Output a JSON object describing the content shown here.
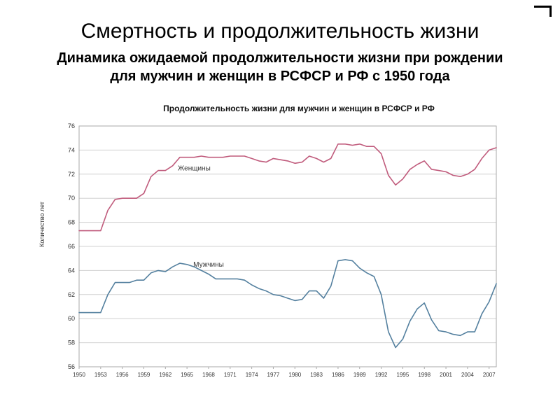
{
  "slide": {
    "title": "Смертность и продолжительность жизни",
    "subtitle": "Динамика ожидаемой продолжительности жизни при рождении для мужчин и женщин в РСФСР и РФ с 1950 года"
  },
  "chart_data": {
    "type": "line",
    "title": "Продолжительность жизни для мужчин и женщин в РСФСР и РФ",
    "ylabel": "Количество лет",
    "ylim": [
      56,
      76
    ],
    "ytick_step": 2,
    "xlim": [
      1950,
      2008
    ],
    "xticks": [
      1950,
      1953,
      1956,
      1959,
      1962,
      1965,
      1968,
      1971,
      1974,
      1977,
      1980,
      1983,
      1986,
      1989,
      1992,
      1995,
      1998,
      2001,
      2004,
      2007
    ],
    "grid": true,
    "legend_position": "inline-labels",
    "x": [
      1950,
      1951,
      1952,
      1953,
      1954,
      1955,
      1956,
      1957,
      1958,
      1959,
      1960,
      1961,
      1962,
      1963,
      1964,
      1965,
      1966,
      1967,
      1968,
      1969,
      1970,
      1971,
      1972,
      1973,
      1974,
      1975,
      1976,
      1977,
      1978,
      1979,
      1980,
      1981,
      1982,
      1983,
      1984,
      1985,
      1986,
      1987,
      1988,
      1989,
      1990,
      1991,
      1992,
      1993,
      1994,
      1995,
      1996,
      1997,
      1998,
      1999,
      2000,
      2001,
      2002,
      2003,
      2004,
      2005,
      2006,
      2007,
      2008
    ],
    "series": [
      {
        "name": "Женщины",
        "color": "#c05b7c",
        "label_x": 1966,
        "label_y": 72.3,
        "values": [
          67.3,
          67.3,
          67.3,
          67.3,
          69.0,
          69.9,
          70.0,
          70.0,
          70.0,
          70.4,
          71.8,
          72.3,
          72.3,
          72.7,
          73.4,
          73.4,
          73.4,
          73.5,
          73.4,
          73.4,
          73.4,
          73.5,
          73.5,
          73.5,
          73.3,
          73.1,
          73.0,
          73.3,
          73.2,
          73.1,
          72.9,
          73.0,
          73.5,
          73.3,
          73.0,
          73.3,
          74.5,
          74.5,
          74.4,
          74.5,
          74.3,
          74.3,
          73.7,
          71.9,
          71.1,
          71.6,
          72.4,
          72.8,
          73.1,
          72.4,
          72.3,
          72.2,
          71.9,
          71.8,
          72.0,
          72.4,
          73.3,
          74.0,
          74.2
        ]
      },
      {
        "name": "Мужчины",
        "color": "#54809f",
        "label_x": 1968,
        "label_y": 64.3,
        "values": [
          60.5,
          60.5,
          60.5,
          60.5,
          62.0,
          63.0,
          63.0,
          63.0,
          63.2,
          63.2,
          63.8,
          64.0,
          63.9,
          64.3,
          64.6,
          64.5,
          64.3,
          64.0,
          63.7,
          63.3,
          63.3,
          63.3,
          63.3,
          63.2,
          62.8,
          62.5,
          62.3,
          62.0,
          61.9,
          61.7,
          61.5,
          61.6,
          62.3,
          62.3,
          61.7,
          62.7,
          64.8,
          64.9,
          64.8,
          64.2,
          63.8,
          63.5,
          62.0,
          58.9,
          57.6,
          58.3,
          59.8,
          60.8,
          61.3,
          59.9,
          59.0,
          58.9,
          58.7,
          58.6,
          58.9,
          58.9,
          60.4,
          61.4,
          62.9
        ]
      }
    ],
    "colors": {
      "grid": "#d0d0d0",
      "border": "#aaaaaa",
      "tick_text": "#333333",
      "series_label": "#333333"
    }
  }
}
